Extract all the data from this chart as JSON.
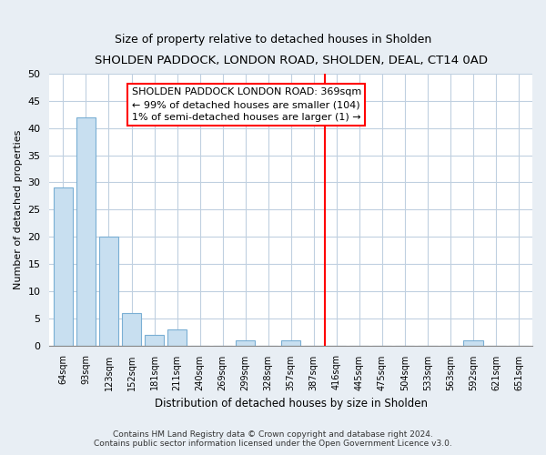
{
  "title": "SHOLDEN PADDOCK, LONDON ROAD, SHOLDEN, DEAL, CT14 0AD",
  "subtitle": "Size of property relative to detached houses in Sholden",
  "xlabel": "Distribution of detached houses by size in Sholden",
  "ylabel": "Number of detached properties",
  "bar_labels": [
    "64sqm",
    "93sqm",
    "123sqm",
    "152sqm",
    "181sqm",
    "211sqm",
    "240sqm",
    "269sqm",
    "299sqm",
    "328sqm",
    "357sqm",
    "387sqm",
    "416sqm",
    "445sqm",
    "475sqm",
    "504sqm",
    "533sqm",
    "563sqm",
    "592sqm",
    "621sqm",
    "651sqm"
  ],
  "bar_values": [
    29,
    42,
    20,
    6,
    2,
    3,
    0,
    0,
    1,
    0,
    1,
    0,
    0,
    0,
    0,
    0,
    0,
    0,
    1,
    0,
    0
  ],
  "bar_color": "#c8dff0",
  "bar_edge_color": "#7aafd4",
  "ref_line_x": 11.5,
  "annotation_title": "SHOLDEN PADDOCK LONDON ROAD: 369sqm",
  "annotation_line1": "← 99% of detached houses are smaller (104)",
  "annotation_line2": "1% of semi-detached houses are larger (1) →",
  "ylim": [
    0,
    50
  ],
  "yticks": [
    0,
    5,
    10,
    15,
    20,
    25,
    30,
    35,
    40,
    45,
    50
  ],
  "footer1": "Contains HM Land Registry data © Crown copyright and database right 2024.",
  "footer2": "Contains public sector information licensed under the Open Government Licence v3.0.",
  "bg_color": "#e8eef4",
  "plot_bg_color": "#ffffff",
  "grid_color": "#c0d0e0"
}
